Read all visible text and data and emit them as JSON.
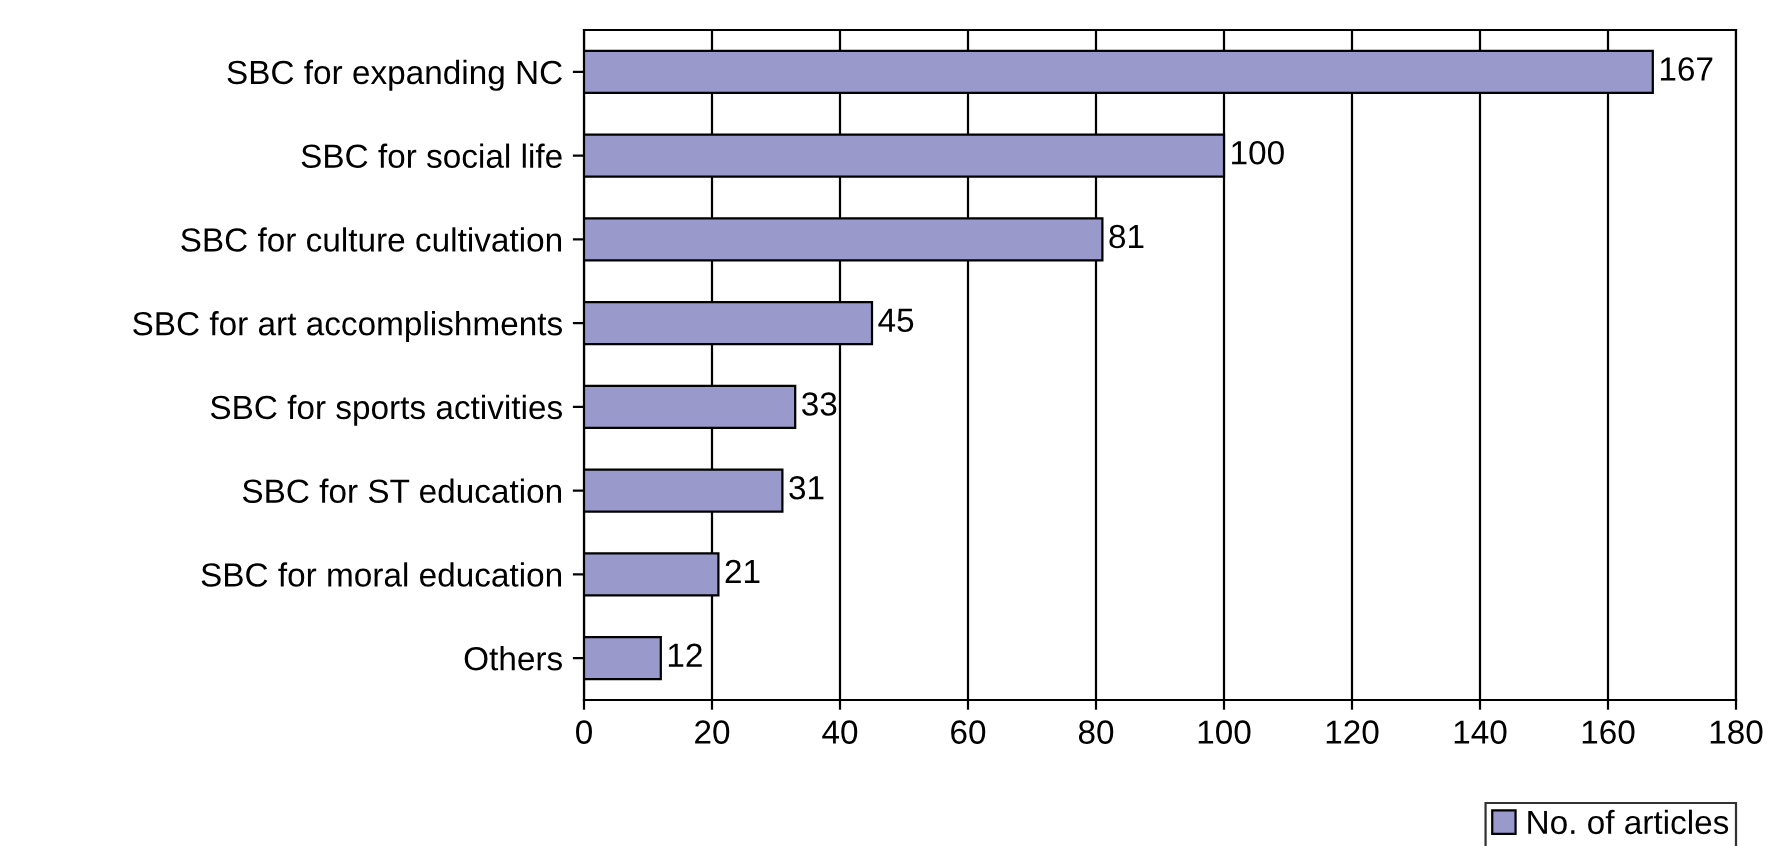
{
  "chart_data": {
    "type": "bar",
    "orientation": "horizontal",
    "categories": [
      "SBC for expanding NC",
      "SBC for social life",
      "SBC for culture cultivation",
      "SBC for art accomplishments",
      "SBC for sports activities",
      "SBC for ST education",
      "SBC for moral education",
      "Others"
    ],
    "series": [
      {
        "name": "No. of articles",
        "color": "#9999cc",
        "values": [
          167,
          100,
          81,
          45,
          33,
          31,
          21,
          12
        ]
      }
    ],
    "xlim": [
      0,
      180
    ],
    "xticks": [
      0,
      20,
      40,
      60,
      80,
      100,
      120,
      140,
      160,
      180
    ],
    "grid": "x",
    "legend": "bottom right",
    "data_labels": true
  }
}
